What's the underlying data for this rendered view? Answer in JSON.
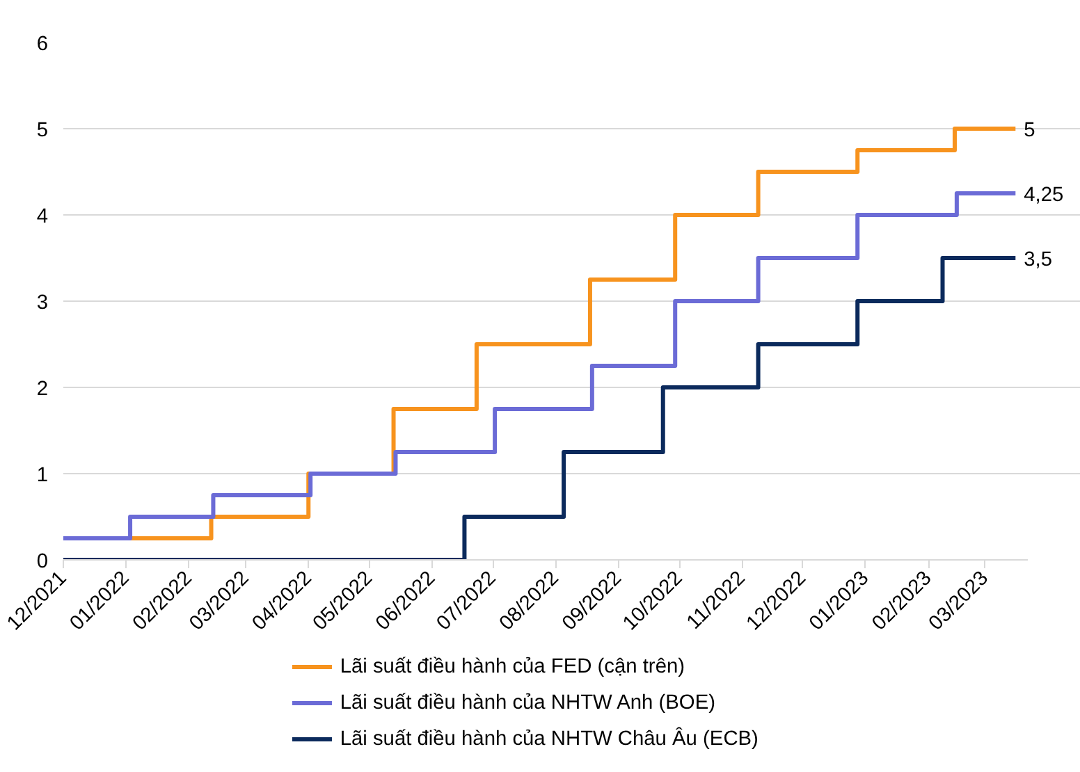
{
  "chart_data": {
    "type": "step",
    "xlim": [
      "2021-12-01",
      "2023-03-22"
    ],
    "ylim": [
      0,
      6
    ],
    "yticks": [
      0,
      1,
      2,
      3,
      4,
      5,
      6
    ],
    "xticks": [
      {
        "value": "2021-12-01",
        "label": "12/2021"
      },
      {
        "value": "2022-01-01",
        "label": "01/2022"
      },
      {
        "value": "2022-02-01",
        "label": "02/2022"
      },
      {
        "value": "2022-03-01",
        "label": "03/2022"
      },
      {
        "value": "2022-04-01",
        "label": "04/2022"
      },
      {
        "value": "2022-05-01",
        "label": "05/2022"
      },
      {
        "value": "2022-06-01",
        "label": "06/2022"
      },
      {
        "value": "2022-07-01",
        "label": "07/2022"
      },
      {
        "value": "2022-08-01",
        "label": "08/2022"
      },
      {
        "value": "2022-09-01",
        "label": "09/2022"
      },
      {
        "value": "2022-10-01",
        "label": "10/2022"
      },
      {
        "value": "2022-11-01",
        "label": "11/2022"
      },
      {
        "value": "2022-12-01",
        "label": "12/2022"
      },
      {
        "value": "2023-01-01",
        "label": "01/2023"
      },
      {
        "value": "2023-02-01",
        "label": "02/2023"
      },
      {
        "value": "2023-03-01",
        "label": "03/2023"
      }
    ],
    "series": [
      {
        "name": "Lãi suất điều hành của FED (cận trên)",
        "color": "#f7931e",
        "x": [
          "2021-12-01",
          "2022-02-12",
          "2022-04-01",
          "2022-05-13",
          "2022-06-23",
          "2022-08-18",
          "2022-09-29",
          "2022-11-09",
          "2022-12-28",
          "2023-02-14",
          "2023-03-16"
        ],
        "values": [
          0.25,
          0.5,
          1.0,
          1.75,
          2.5,
          3.25,
          4.0,
          4.5,
          4.75,
          5.0,
          5.0
        ]
      },
      {
        "name": "Lãi suất điều hành của NHTW Anh (BOE)",
        "color": "#6b6bd6",
        "x": [
          "2021-12-01",
          "2022-01-03",
          "2022-02-13",
          "2022-04-02",
          "2022-05-14",
          "2022-07-02",
          "2022-08-19",
          "2022-09-29",
          "2022-11-09",
          "2022-12-28",
          "2023-02-15",
          "2023-03-16"
        ],
        "values": [
          0.25,
          0.5,
          0.75,
          1.0,
          1.25,
          1.75,
          2.25,
          3.0,
          3.5,
          4.0,
          4.25,
          4.25
        ]
      },
      {
        "name": "Lãi suất điều hành của NHTW Châu Âu (ECB)",
        "color": "#0b2a5c",
        "x": [
          "2021-12-01",
          "2022-06-17",
          "2022-08-05",
          "2022-09-23",
          "2022-11-09",
          "2022-12-28",
          "2023-02-08",
          "2023-03-16"
        ],
        "values": [
          0,
          0.5,
          1.25,
          2.0,
          2.5,
          3.0,
          3.5,
          3.5
        ]
      }
    ],
    "annotations": [
      {
        "text": "5",
        "x": "2023-03-16",
        "y": 5.0
      },
      {
        "text": "4,25",
        "x": "2023-03-16",
        "y": 4.25
      },
      {
        "text": "3,5",
        "x": "2023-03-16",
        "y": 3.5
      }
    ],
    "grid": "y",
    "legend": "bottom",
    "line_style": "solid",
    "marker": "none"
  }
}
